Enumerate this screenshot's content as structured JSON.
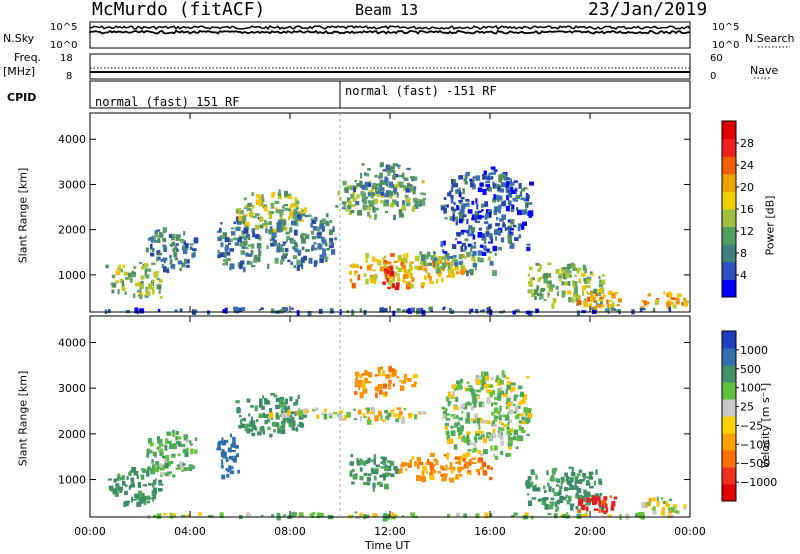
{
  "header": {
    "station": "McMurdo (fitACF)",
    "beam": "Beam 13",
    "date": "23/Jan/2019"
  },
  "labels": {
    "nsky": "N.Sky",
    "nsearch": "N.Search",
    "freq": "Freq.",
    "freq_unit": "[MHz]",
    "nave": "Nave",
    "cpid": "CPID",
    "slant_range": "Slant Range [km]",
    "time_axis": "Time UT",
    "power_bar": "Power [dB]",
    "velocity_bar": "Velocity [m s⁻¹]"
  },
  "noise_ticks": {
    "left_top": "10^5",
    "left_bottom": "10^0",
    "right_top": "10^5",
    "right_bottom": "10^0"
  },
  "freq_ticks": {
    "left_top": "18",
    "left_bottom": "8",
    "right_top": "60",
    "right_bottom": "0"
  },
  "cpid_segments": [
    {
      "label": "normal (fast) 151 RF",
      "start_hour": 0
    },
    {
      "label": "normal (fast) -151 RF",
      "start_hour": 10
    }
  ],
  "colors": {
    "power_scale": [
      "#0000ff",
      "#2747a8",
      "#3c6fae",
      "#4f8e5c",
      "#64a56b",
      "#b6c62b",
      "#f2c400",
      "#f29000",
      "#f05a00",
      "#e01010"
    ],
    "velocity_scale": [
      "#2a3fb2",
      "#2b6fa8",
      "#3c8a68",
      "#4fa85a",
      "#66c23a",
      "#c8c8c8",
      "#ffc000",
      "#ff9000",
      "#ff6000",
      "#e02020"
    ],
    "power_cbar": [
      "#0000ff",
      "#3050c0",
      "#408080",
      "#50a060",
      "#a0c040",
      "#f0d000",
      "#f0a000",
      "#f06000",
      "#f02020",
      "#e00000"
    ],
    "velocity_cbar": [
      "#2040c0",
      "#3070b0",
      "#40906a",
      "#60c040",
      "#c8c8c8",
      "#ffd000",
      "#ffa000",
      "#ff7000",
      "#f03020",
      "#e00000"
    ]
  },
  "chart_data": [
    {
      "type": "heatmap",
      "title": "Power",
      "ylabel": "Slant Range [km]",
      "xlabel": "Time UT",
      "x_ticks": [
        "00:00",
        "04:00",
        "08:00",
        "12:00",
        "16:00",
        "20:00",
        "00:00"
      ],
      "xlim_hours": [
        0,
        24
      ],
      "y_ticks": [
        1000,
        2000,
        3000,
        4000
      ],
      "ylim_km": [
        180,
        4580
      ],
      "colorbar": {
        "label": "Power [dB]",
        "ticks": [
          4,
          8,
          12,
          16,
          20,
          24,
          28
        ],
        "range": [
          0,
          30
        ]
      },
      "echo_regions": [
        {
          "t0": 0.6,
          "t1": 2.8,
          "r0": 500,
          "r1": 1300,
          "dB": 14
        },
        {
          "t0": 2.2,
          "t1": 4.2,
          "r0": 1100,
          "r1": 2100,
          "dB": 8
        },
        {
          "t0": 5.0,
          "t1": 6.8,
          "r0": 1100,
          "r1": 2300,
          "dB": 9
        },
        {
          "t0": 5.8,
          "t1": 8.6,
          "r0": 2000,
          "r1": 2900,
          "dB": 16
        },
        {
          "t0": 7.0,
          "t1": 9.8,
          "r0": 1200,
          "r1": 2400,
          "dB": 9
        },
        {
          "t0": 9.8,
          "t1": 13.5,
          "r0": 2300,
          "r1": 3100,
          "dB": 13
        },
        {
          "t0": 10.5,
          "t1": 13.0,
          "r0": 2800,
          "r1": 3500,
          "dB": 9
        },
        {
          "t0": 10.3,
          "t1": 15.0,
          "r0": 800,
          "r1": 1500,
          "dB": 20
        },
        {
          "t0": 11.6,
          "t1": 12.4,
          "r0": 700,
          "r1": 1200,
          "dB": 28
        },
        {
          "t0": 13.0,
          "t1": 16.2,
          "r0": 1100,
          "r1": 1600,
          "dB": 12
        },
        {
          "t0": 14.0,
          "t1": 17.6,
          "r0": 1500,
          "r1": 3400,
          "dB": 6
        },
        {
          "t0": 17.4,
          "t1": 20.5,
          "r0": 350,
          "r1": 1300,
          "dB": 14
        },
        {
          "t0": 19.4,
          "t1": 21.2,
          "r0": 300,
          "r1": 700,
          "dB": 22
        },
        {
          "t0": 22.0,
          "t1": 23.9,
          "r0": 300,
          "r1": 650,
          "dB": 20
        },
        {
          "t0": 0.0,
          "t1": 24.0,
          "r0": 200,
          "r1": 300,
          "dB": 6
        }
      ]
    },
    {
      "type": "heatmap",
      "title": "Velocity",
      "ylabel": "Slant Range [km]",
      "xlabel": "Time UT",
      "x_ticks": [
        "00:00",
        "04:00",
        "08:00",
        "12:00",
        "16:00",
        "20:00",
        "00:00"
      ],
      "xlim_hours": [
        0,
        24
      ],
      "y_ticks": [
        1000,
        2000,
        3000,
        4000
      ],
      "ylim_km": [
        180,
        4580
      ],
      "colorbar": {
        "label": "Velocity [m s⁻¹]",
        "ticks": [
          "1000",
          "500",
          "100",
          "25",
          "−25",
          "−100",
          "−500",
          "−1000"
        ]
      },
      "echo_regions": [
        {
          "t0": 0.6,
          "t1": 2.8,
          "r0": 500,
          "r1": 1300,
          "v": 300
        },
        {
          "t0": 2.2,
          "t1": 4.2,
          "r0": 1100,
          "r1": 2100,
          "v": 150
        },
        {
          "t0": 5.0,
          "t1": 5.9,
          "r0": 1100,
          "r1": 2100,
          "v": 800
        },
        {
          "t0": 5.8,
          "t1": 8.6,
          "r0": 2000,
          "r1": 2900,
          "v": 300
        },
        {
          "t0": 7.0,
          "t1": 9.8,
          "r0": 2400,
          "r1": 2600,
          "v": 0
        },
        {
          "t0": 9.8,
          "t1": 13.5,
          "r0": 2300,
          "r1": 2600,
          "v": 0
        },
        {
          "t0": 10.5,
          "t1": 13.0,
          "r0": 2900,
          "r1": 3500,
          "v": -200
        },
        {
          "t0": 10.3,
          "t1": 12.2,
          "r0": 800,
          "r1": 1600,
          "v": 300
        },
        {
          "t0": 12.2,
          "t1": 16.2,
          "r0": 1000,
          "r1": 1600,
          "v": -200
        },
        {
          "t0": 14.0,
          "t1": 17.6,
          "r0": 1500,
          "r1": 3400,
          "v": 60
        },
        {
          "t0": 17.4,
          "t1": 20.5,
          "r0": 350,
          "r1": 1300,
          "v": 300
        },
        {
          "t0": 19.4,
          "t1": 21.2,
          "r0": 300,
          "r1": 700,
          "v": -600
        },
        {
          "t0": 22.0,
          "t1": 23.9,
          "r0": 300,
          "r1": 650,
          "v": 0
        },
        {
          "t0": 0.0,
          "t1": 24.0,
          "r0": 200,
          "r1": 300,
          "v": 60
        }
      ]
    }
  ]
}
